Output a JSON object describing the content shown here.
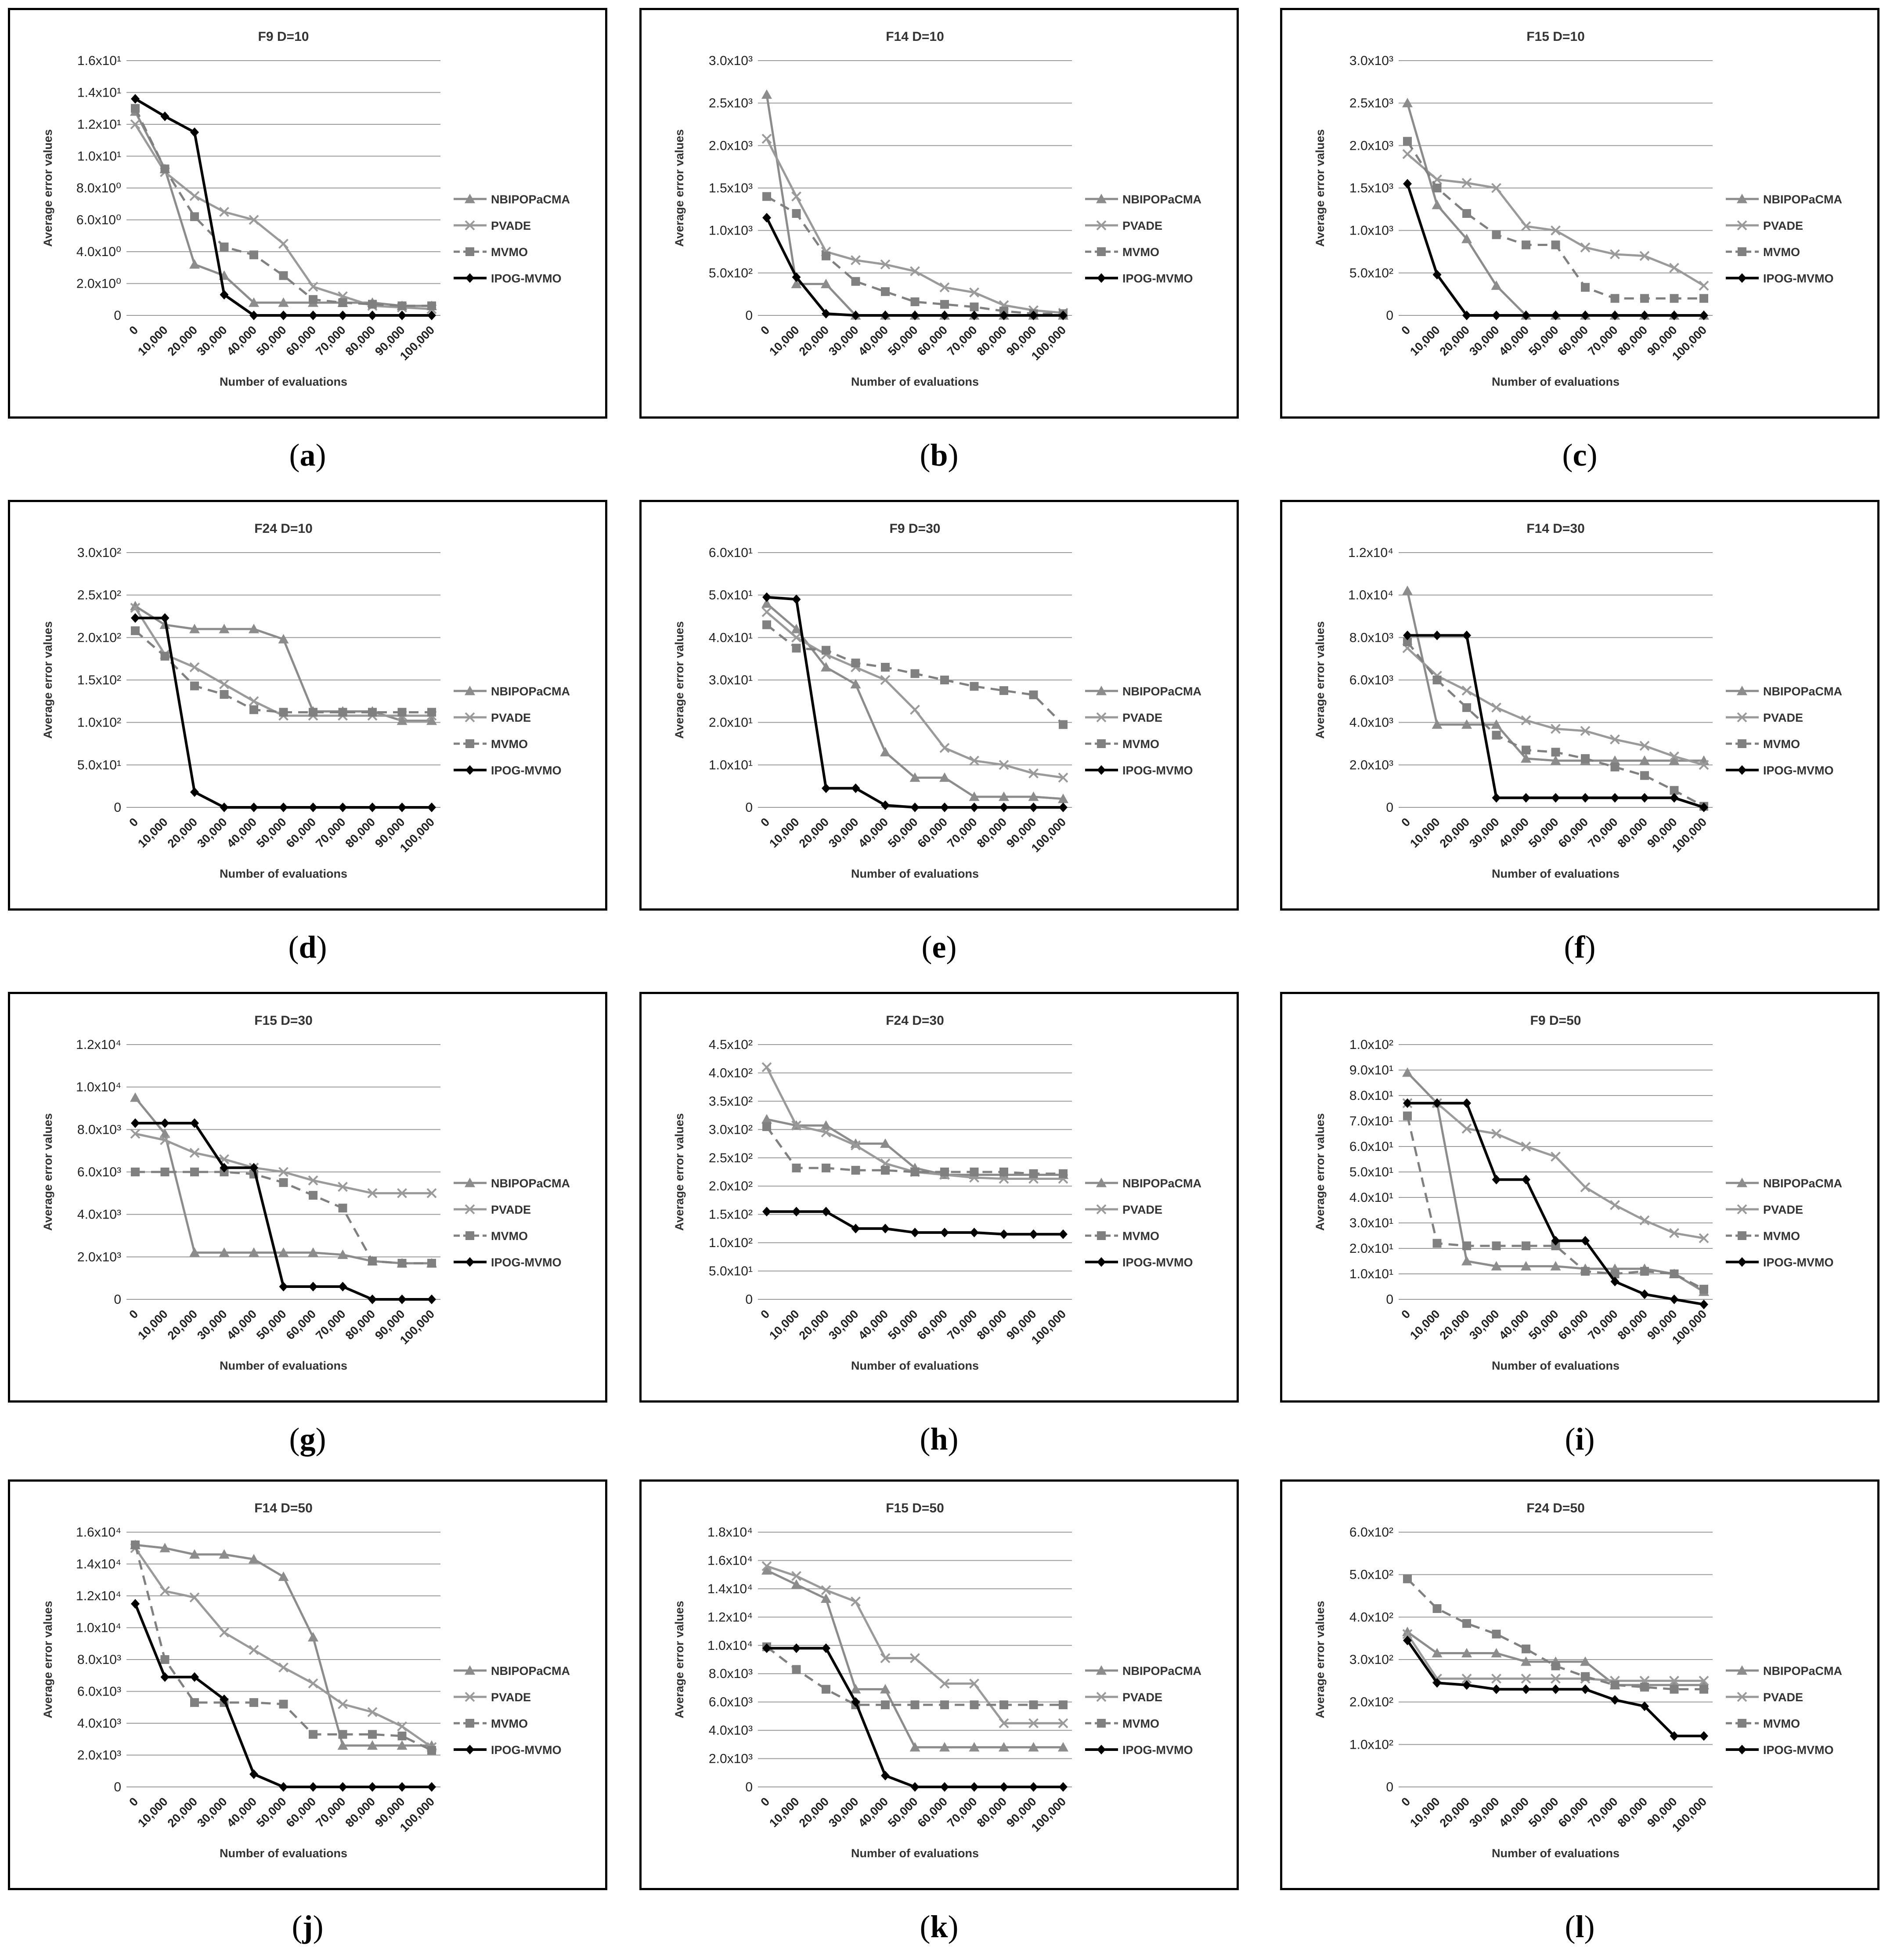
{
  "x_axis": {
    "categories": [
      "0",
      "10,000",
      "20,000",
      "30,000",
      "40,000",
      "50,000",
      "60,000",
      "70,000",
      "80,000",
      "90,000",
      "100,000"
    ],
    "label": "Number of evaluations"
  },
  "y_axis_label": "Average error values",
  "series_styles": {
    "NBIPOPaCMA": {
      "color": "#8c8c8c",
      "marker": "triangle",
      "dash": "none"
    },
    "PVADE": {
      "color": "#9a9a9a",
      "marker": "x",
      "dash": "none"
    },
    "MVMO": {
      "color": "#808080",
      "marker": "square",
      "dash": "dashed"
    },
    "IPOG-MVMO": {
      "color": "#000000",
      "marker": "diamond",
      "dash": "none"
    }
  },
  "panel_labels": [
    "a",
    "b",
    "c",
    "d",
    "e",
    "f",
    "g",
    "h",
    "i",
    "j",
    "k",
    "l"
  ],
  "chart_data": [
    {
      "type": "line",
      "title": "F9 D=10",
      "ylim": [
        0,
        16
      ],
      "y_ticks": [
        0,
        2,
        4,
        6,
        8,
        10,
        12,
        14,
        16
      ],
      "y_tick_labels": [
        "0",
        "2.0x10⁰",
        "4.0x10⁰",
        "6.0x10⁰",
        "8.0x10⁰",
        "1.0x10¹",
        "1.2x10¹",
        "1.4x10¹",
        "1.6x10¹"
      ],
      "series": [
        {
          "name": "NBIPOPaCMA",
          "values": [
            12.8,
            9.2,
            3.2,
            2.5,
            0.8,
            0.8,
            0.8,
            0.8,
            0.8,
            0.6,
            0.6
          ]
        },
        {
          "name": "PVADE",
          "values": [
            12.0,
            9.0,
            7.5,
            6.5,
            6.0,
            4.5,
            1.8,
            1.2,
            0.6,
            0.5,
            0.4
          ]
        },
        {
          "name": "MVMO",
          "values": [
            13.0,
            9.2,
            6.2,
            4.3,
            3.8,
            2.5,
            1.0,
            0.8,
            0.7,
            0.6,
            0.6
          ]
        },
        {
          "name": "IPOG-MVMO",
          "values": [
            13.6,
            12.5,
            11.5,
            1.3,
            0,
            0,
            0,
            0,
            0,
            0,
            0
          ]
        }
      ]
    },
    {
      "type": "line",
      "title": "F14 D=10",
      "ylim": [
        0,
        3000
      ],
      "y_ticks": [
        0,
        500,
        1000,
        1500,
        2000,
        2500,
        3000
      ],
      "y_tick_labels": [
        "0",
        "5.0x10²",
        "1.0x10³",
        "1.5x10³",
        "2.0x10³",
        "2.5x10³",
        "3.0x10³"
      ],
      "series": [
        {
          "name": "NBIPOPaCMA",
          "values": [
            2600,
            370,
            370,
            0,
            0,
            0,
            0,
            0,
            0,
            0,
            0
          ]
        },
        {
          "name": "PVADE",
          "values": [
            2080,
            1400,
            750,
            650,
            600,
            520,
            330,
            270,
            120,
            60,
            30
          ]
        },
        {
          "name": "MVMO",
          "values": [
            1400,
            1200,
            700,
            400,
            280,
            160,
            130,
            100,
            50,
            20,
            20
          ]
        },
        {
          "name": "IPOG-MVMO",
          "values": [
            1150,
            450,
            20,
            0,
            0,
            0,
            0,
            0,
            0,
            0,
            0
          ]
        }
      ]
    },
    {
      "type": "line",
      "title": "F15 D=10",
      "ylim": [
        0,
        3000
      ],
      "y_ticks": [
        0,
        500,
        1000,
        1500,
        2000,
        2500,
        3000
      ],
      "y_tick_labels": [
        "0",
        "5.0x10²",
        "1.0x10³",
        "1.5x10³",
        "2.0x10³",
        "2.5x10³",
        "3.0x10³"
      ],
      "series": [
        {
          "name": "NBIPOPaCMA",
          "values": [
            2500,
            1300,
            900,
            350,
            0,
            0,
            0,
            0,
            0,
            0,
            0
          ]
        },
        {
          "name": "PVADE",
          "values": [
            1900,
            1600,
            1560,
            1500,
            1050,
            1000,
            800,
            720,
            700,
            560,
            350
          ]
        },
        {
          "name": "MVMO",
          "values": [
            2050,
            1500,
            1200,
            950,
            830,
            830,
            330,
            200,
            200,
            200,
            200
          ]
        },
        {
          "name": "IPOG-MVMO",
          "values": [
            1550,
            480,
            0,
            0,
            0,
            0,
            0,
            0,
            0,
            0,
            0
          ]
        }
      ]
    },
    {
      "type": "line",
      "title": "F24 D=10",
      "ylim": [
        0,
        300
      ],
      "y_ticks": [
        0,
        50,
        100,
        150,
        200,
        250,
        300
      ],
      "y_tick_labels": [
        "0",
        "5.0x10¹",
        "1.0x10²",
        "1.5x10²",
        "2.0x10²",
        "2.5x10²",
        "3.0x10²"
      ],
      "series": [
        {
          "name": "NBIPOPaCMA",
          "values": [
            237,
            215,
            210,
            210,
            210,
            198,
            113,
            113,
            113,
            102,
            102
          ]
        },
        {
          "name": "PVADE",
          "values": [
            235,
            180,
            165,
            145,
            125,
            108,
            108,
            108,
            108,
            108,
            108
          ]
        },
        {
          "name": "MVMO",
          "values": [
            208,
            178,
            143,
            133,
            115,
            112,
            112,
            112,
            112,
            112,
            112
          ]
        },
        {
          "name": "IPOG-MVMO",
          "values": [
            223,
            223,
            18,
            0,
            0,
            0,
            0,
            0,
            0,
            0,
            0
          ]
        }
      ]
    },
    {
      "type": "line",
      "title": "F9 D=30",
      "ylim": [
        0,
        60
      ],
      "y_ticks": [
        0,
        10,
        20,
        30,
        40,
        50,
        60
      ],
      "y_tick_labels": [
        "0",
        "1.0x10¹",
        "2.0x10¹",
        "3.0x10¹",
        "4.0x10¹",
        "5.0x10¹",
        "6.0x10¹"
      ],
      "series": [
        {
          "name": "NBIPOPaCMA",
          "values": [
            48,
            42,
            33,
            29,
            13,
            7,
            7,
            2.5,
            2.5,
            2.5,
            2
          ]
        },
        {
          "name": "PVADE",
          "values": [
            46,
            40,
            36,
            33,
            30,
            23,
            14,
            11,
            10,
            8,
            7
          ]
        },
        {
          "name": "MVMO",
          "values": [
            43,
            37.5,
            37,
            34,
            33,
            31.5,
            30,
            28.5,
            27.5,
            26.5,
            19.5
          ]
        },
        {
          "name": "IPOG-MVMO",
          "values": [
            49.5,
            49,
            4.5,
            4.5,
            0.5,
            0,
            0,
            0,
            0,
            0,
            0
          ]
        }
      ]
    },
    {
      "type": "line",
      "title": "F14 D=30",
      "ylim": [
        0,
        12000
      ],
      "y_ticks": [
        0,
        2000,
        4000,
        6000,
        8000,
        10000,
        12000
      ],
      "y_tick_labels": [
        "0",
        "2.0x10³",
        "4.0x10³",
        "6.0x10³",
        "8.0x10³",
        "1.0x10⁴",
        "1.2x10⁴"
      ],
      "series": [
        {
          "name": "NBIPOPaCMA",
          "values": [
            10200,
            3900,
            3900,
            3900,
            2300,
            2200,
            2200,
            2200,
            2200,
            2200,
            2200
          ]
        },
        {
          "name": "PVADE",
          "values": [
            7500,
            6200,
            5500,
            4700,
            4100,
            3700,
            3600,
            3200,
            2900,
            2400,
            2000
          ]
        },
        {
          "name": "MVMO",
          "values": [
            7800,
            6000,
            4700,
            3400,
            2700,
            2600,
            2300,
            1900,
            1500,
            800,
            50
          ]
        },
        {
          "name": "IPOG-MVMO",
          "values": [
            8100,
            8100,
            8100,
            450,
            450,
            450,
            450,
            450,
            450,
            450,
            0
          ]
        }
      ]
    },
    {
      "type": "line",
      "title": "F15 D=30",
      "ylim": [
        0,
        12000
      ],
      "y_ticks": [
        0,
        2000,
        4000,
        6000,
        8000,
        10000,
        12000
      ],
      "y_tick_labels": [
        "0",
        "2.0x10³",
        "4.0x10³",
        "6.0x10³",
        "8.0x10³",
        "1.0x10⁴",
        "1.2x10⁴"
      ],
      "series": [
        {
          "name": "NBIPOPaCMA",
          "values": [
            9500,
            7800,
            2200,
            2200,
            2200,
            2200,
            2200,
            2100,
            1800,
            1700,
            1700
          ]
        },
        {
          "name": "PVADE",
          "values": [
            7800,
            7500,
            6900,
            6600,
            6200,
            6000,
            5600,
            5300,
            5000,
            5000,
            5000
          ]
        },
        {
          "name": "MVMO",
          "values": [
            6000,
            6000,
            6000,
            6000,
            5900,
            5500,
            4900,
            4300,
            1800,
            1700,
            1700
          ]
        },
        {
          "name": "IPOG-MVMO",
          "values": [
            8300,
            8300,
            8300,
            6200,
            6200,
            600,
            600,
            600,
            0,
            0,
            0
          ]
        }
      ]
    },
    {
      "type": "line",
      "title": "F24 D=30",
      "ylim": [
        0,
        450
      ],
      "y_ticks": [
        0,
        50,
        100,
        150,
        200,
        250,
        300,
        350,
        400,
        450
      ],
      "y_tick_labels": [
        "0",
        "5.0x10¹",
        "1.0x10²",
        "1.5x10²",
        "2.0x10²",
        "2.5x10²",
        "3.0x10²",
        "3.5x10²",
        "4.0x10²",
        "4.5x10²"
      ],
      "series": [
        {
          "name": "NBIPOPaCMA",
          "values": [
            318,
            307,
            307,
            275,
            275,
            232,
            220,
            220,
            220,
            220,
            220
          ]
        },
        {
          "name": "PVADE",
          "values": [
            410,
            307,
            295,
            272,
            240,
            225,
            220,
            215,
            213,
            213,
            213
          ]
        },
        {
          "name": "MVMO",
          "values": [
            305,
            232,
            232,
            228,
            228,
            225,
            225,
            225,
            225,
            222,
            222
          ]
        },
        {
          "name": "IPOG-MVMO",
          "values": [
            155,
            155,
            155,
            125,
            125,
            118,
            118,
            118,
            115,
            115,
            115
          ]
        }
      ]
    },
    {
      "type": "line",
      "title": "F9 D=50",
      "ylim": [
        0,
        100
      ],
      "y_ticks": [
        0,
        10,
        20,
        30,
        40,
        50,
        60,
        70,
        80,
        90,
        100
      ],
      "y_tick_labels": [
        "0",
        "1.0x10¹",
        "2.0x10¹",
        "3.0x10¹",
        "4.0x10¹",
        "5.0x10¹",
        "6.0x10¹",
        "7.0x10¹",
        "8.0x10¹",
        "9.0x10¹",
        "1.0x10²"
      ],
      "series": [
        {
          "name": "NBIPOPaCMA",
          "values": [
            89,
            77,
            15,
            13,
            13,
            13,
            12,
            12,
            12,
            10,
            3
          ]
        },
        {
          "name": "PVADE",
          "values": [
            77,
            77,
            67,
            65,
            60,
            56,
            44,
            37,
            31,
            26,
            24
          ]
        },
        {
          "name": "MVMO",
          "values": [
            72,
            22,
            21,
            21,
            21,
            21,
            11,
            10,
            11,
            10,
            4
          ]
        },
        {
          "name": "IPOG-MVMO",
          "values": [
            77,
            77,
            77,
            47,
            47,
            23,
            23,
            7,
            2,
            0,
            -2
          ]
        }
      ]
    },
    {
      "type": "line",
      "title": "F14 D=50",
      "ylim": [
        0,
        16000
      ],
      "y_ticks": [
        0,
        2000,
        4000,
        6000,
        8000,
        10000,
        12000,
        14000,
        16000
      ],
      "y_tick_labels": [
        "0",
        "2.0x10³",
        "4.0x10³",
        "6.0x10³",
        "8.0x10³",
        "1.0x10⁴",
        "1.2x10⁴",
        "1.4x10⁴",
        "1.6x10⁴"
      ],
      "series": [
        {
          "name": "NBIPOPaCMA",
          "values": [
            15200,
            15000,
            14600,
            14600,
            14300,
            13200,
            9400,
            2600,
            2600,
            2600,
            2600
          ]
        },
        {
          "name": "PVADE",
          "values": [
            15000,
            12300,
            11900,
            9700,
            8600,
            7500,
            6500,
            5200,
            4700,
            3800,
            2500
          ]
        },
        {
          "name": "MVMO",
          "values": [
            15200,
            8000,
            5300,
            5300,
            5300,
            5200,
            3300,
            3300,
            3300,
            3200,
            2300
          ]
        },
        {
          "name": "IPOG-MVMO",
          "values": [
            11500,
            6900,
            6900,
            5500,
            800,
            0,
            0,
            0,
            0,
            0,
            0
          ]
        }
      ]
    },
    {
      "type": "line",
      "title": "F15 D=50",
      "ylim": [
        0,
        18000
      ],
      "y_ticks": [
        0,
        2000,
        4000,
        6000,
        8000,
        10000,
        12000,
        14000,
        16000,
        18000
      ],
      "y_tick_labels": [
        "0",
        "2.0x10³",
        "4.0x10³",
        "6.0x10³",
        "8.0x10³",
        "1.0x10⁴",
        "1.2x10⁴",
        "1.4x10⁴",
        "1.6x10⁴",
        "1.8x10⁴"
      ],
      "series": [
        {
          "name": "NBIPOPaCMA",
          "values": [
            15300,
            14300,
            13300,
            6900,
            6900,
            2800,
            2800,
            2800,
            2800,
            2800,
            2800
          ]
        },
        {
          "name": "PVADE",
          "values": [
            15600,
            14900,
            13900,
            13100,
            9100,
            9100,
            7300,
            7300,
            4500,
            4500,
            4500
          ]
        },
        {
          "name": "MVMO",
          "values": [
            9900,
            8300,
            6900,
            5800,
            5800,
            5800,
            5800,
            5800,
            5800,
            5800,
            5800
          ]
        },
        {
          "name": "IPOG-MVMO",
          "values": [
            9800,
            9800,
            9800,
            6000,
            800,
            0,
            0,
            0,
            0,
            0,
            0
          ]
        }
      ]
    },
    {
      "type": "line",
      "title": "F24 D=50",
      "ylim": [
        0,
        600
      ],
      "y_ticks": [
        0,
        100,
        200,
        300,
        400,
        500,
        600
      ],
      "y_tick_labels": [
        "0",
        "1.0x10²",
        "2.0x10²",
        "3.0x10²",
        "4.0x10²",
        "5.0x10²",
        "6.0x10²"
      ],
      "series": [
        {
          "name": "NBIPOPaCMA",
          "values": [
            365,
            315,
            315,
            315,
            295,
            295,
            295,
            240,
            240,
            240,
            240
          ]
        },
        {
          "name": "PVADE",
          "values": [
            360,
            255,
            255,
            255,
            255,
            255,
            255,
            250,
            250,
            250,
            250
          ]
        },
        {
          "name": "MVMO",
          "values": [
            490,
            420,
            385,
            360,
            325,
            285,
            260,
            240,
            235,
            230,
            230
          ]
        },
        {
          "name": "IPOG-MVMO",
          "values": [
            345,
            245,
            240,
            230,
            230,
            230,
            230,
            205,
            190,
            120,
            120
          ]
        }
      ]
    }
  ]
}
